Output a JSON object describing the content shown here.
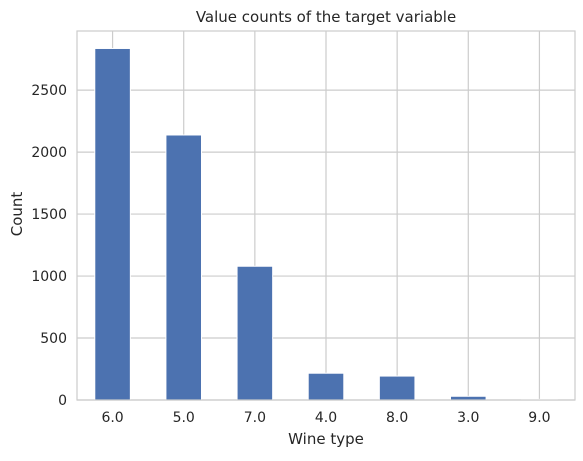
{
  "chart_data": {
    "type": "bar",
    "title": "Value counts of the target variable",
    "xlabel": "Wine type",
    "ylabel": "Count",
    "categories": [
      "6.0",
      "5.0",
      "7.0",
      "4.0",
      "8.0",
      "3.0",
      "9.0"
    ],
    "values": [
      2836,
      2138,
      1079,
      216,
      193,
      30,
      5
    ],
    "ylim": [
      0,
      2977
    ],
    "yticks": [
      0,
      500,
      1000,
      1500,
      2000,
      2500
    ],
    "grid": true,
    "colors": {
      "bar": "#4c72b0",
      "bar_edge": "#ffffff",
      "grid": "#cccccc",
      "frame": "#cccccc",
      "text": "#262626",
      "background": "#ffffff"
    }
  }
}
